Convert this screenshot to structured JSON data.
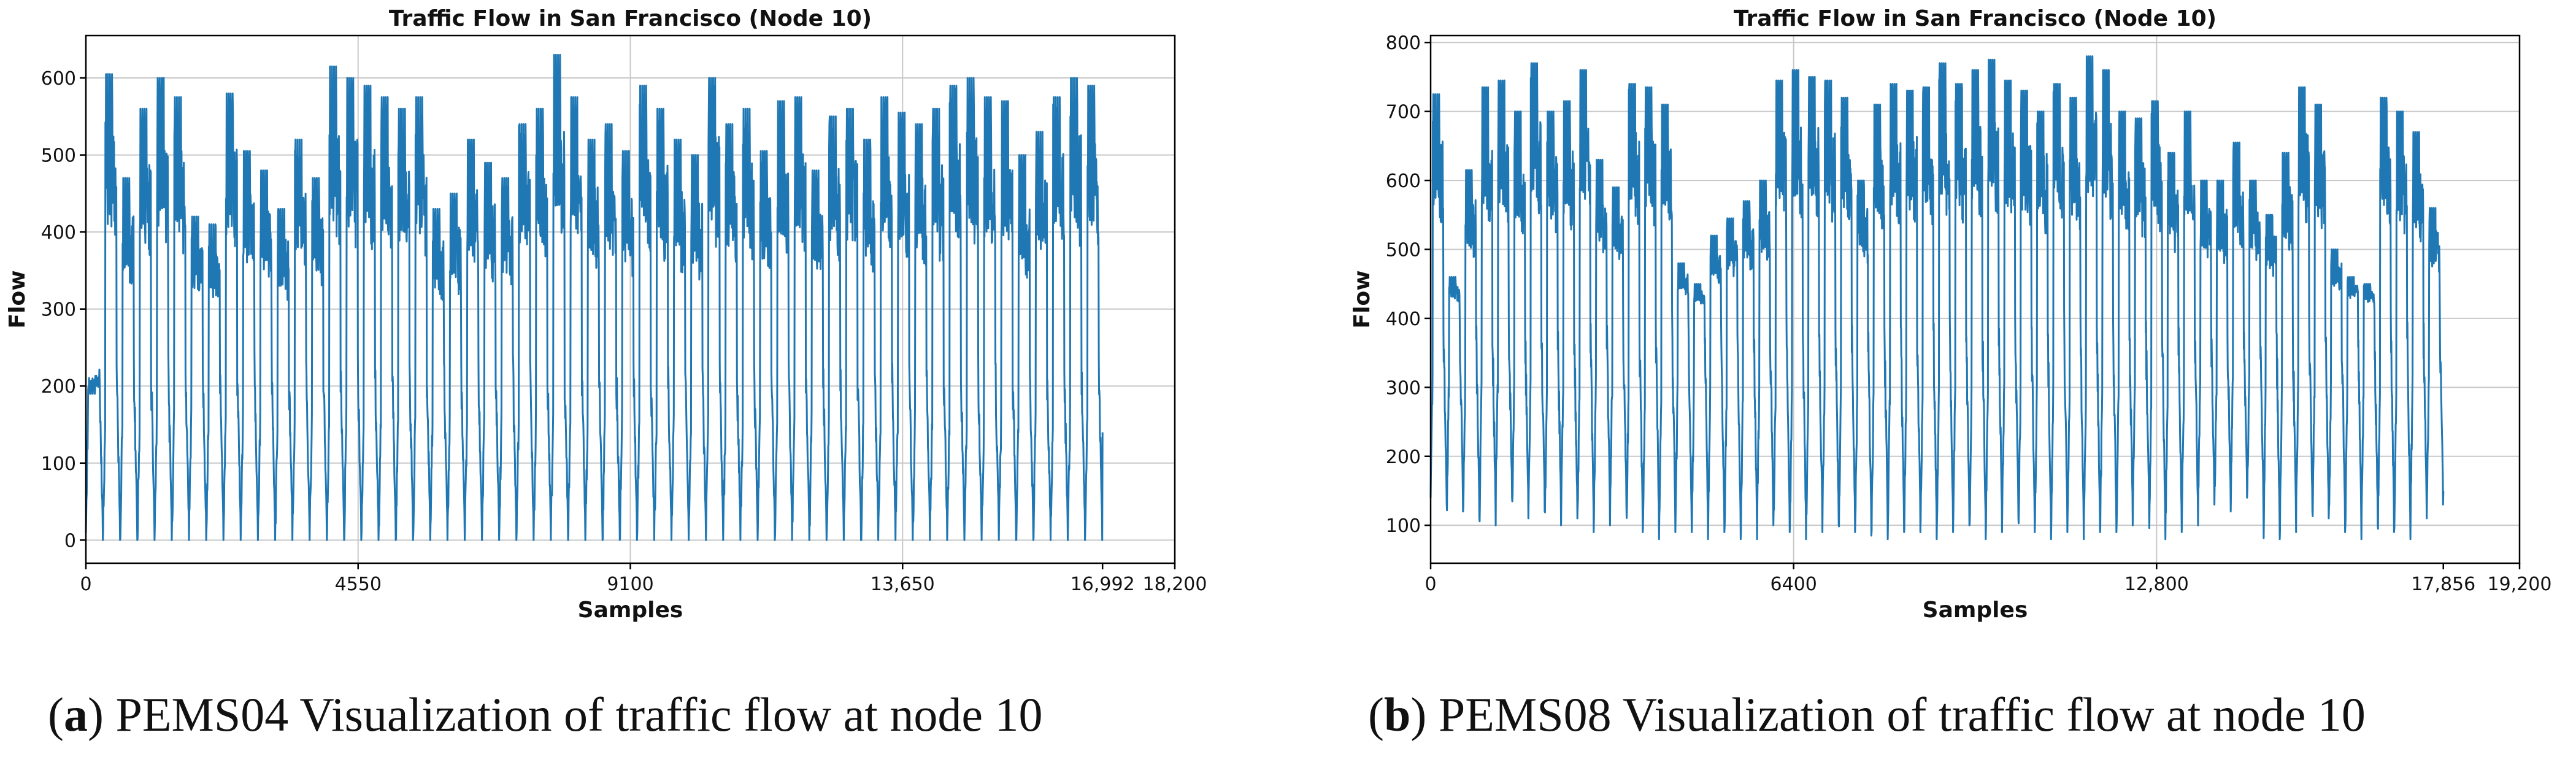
{
  "charts": {
    "a": {
      "caption_letter": "a",
      "caption_text": " PEMS04 Visualization of traffic flow at node 10"
    },
    "b": {
      "caption_letter": "b",
      "caption_text": " PEMS08 Visualization of traffic flow at node 10"
    }
  },
  "colors": {
    "line": "#1f77b4",
    "grid": "#c8c8c8",
    "axis": "#000000",
    "text": "#111111"
  },
  "chart_data": [
    {
      "type": "line",
      "title": "Traffic Flow in San Francisco (Node 10)",
      "xlabel": "Samples",
      "ylabel": "Flow",
      "xlim": [
        0,
        18200
      ],
      "ylim": [
        -30,
        655
      ],
      "xticks": [
        0,
        4550,
        9100,
        13650,
        16992,
        18200
      ],
      "xtick_labels": [
        "0",
        "4550",
        "9100",
        "13,650",
        "16,992",
        "18,200"
      ],
      "yticks": [
        0,
        100,
        200,
        300,
        400,
        500,
        600
      ],
      "xgrid": [
        0,
        4550,
        9100,
        13650,
        18200
      ],
      "grid": true,
      "series": [
        {
          "name": "PEMS04 node 10",
          "x_end": 16992,
          "cycles": 59,
          "daily_peaks": [
            190,
            605,
            470,
            560,
            600,
            575,
            420,
            410,
            580,
            505,
            480,
            430,
            520,
            470,
            615,
            600,
            590,
            575,
            560,
            575,
            430,
            450,
            520,
            490,
            470,
            540,
            560,
            630,
            575,
            520,
            540,
            505,
            590,
            560,
            520,
            500,
            600,
            540,
            560,
            505,
            570,
            575,
            480,
            550,
            560,
            520,
            575,
            555,
            540,
            560,
            590,
            600,
            575,
            570,
            500,
            530,
            575,
            600,
            590
          ],
          "daily_lows": [
            0,
            0,
            0,
            0,
            0,
            0,
            0,
            0,
            0,
            0,
            0,
            0,
            0,
            0,
            0,
            0,
            0,
            0,
            0,
            0,
            0,
            0,
            0,
            0,
            0,
            0,
            0,
            0,
            0,
            0,
            0,
            0,
            0,
            0,
            0,
            0,
            0,
            0,
            0,
            0,
            0,
            0,
            0,
            0,
            0,
            0,
            0,
            0,
            0,
            0,
            0,
            0,
            0,
            0,
            0,
            0,
            0,
            0,
            0
          ],
          "day_floor": 230,
          "end_value": 140
        }
      ]
    },
    {
      "type": "line",
      "title": "Traffic Flow in San Francisco (Node 10)",
      "xlabel": "Samples",
      "ylabel": "Flow",
      "xlim": [
        0,
        19200
      ],
      "ylim": [
        45,
        810
      ],
      "xticks": [
        0,
        6400,
        12800,
        17856,
        19200
      ],
      "xtick_labels": [
        "0",
        "6400",
        "12,800",
        "17,856",
        "19,200"
      ],
      "yticks": [
        100,
        200,
        300,
        400,
        500,
        600,
        700,
        800
      ],
      "xgrid": [
        0,
        6400,
        12800,
        19200
      ],
      "grid": true,
      "series": [
        {
          "name": "PEMS08 node 10",
          "x_end": 17856,
          "cycles": 62,
          "daily_peaks": [
            725,
            460,
            615,
            735,
            745,
            700,
            770,
            700,
            715,
            760,
            630,
            590,
            740,
            735,
            710,
            480,
            450,
            520,
            545,
            570,
            600,
            745,
            760,
            750,
            745,
            720,
            600,
            710,
            740,
            730,
            735,
            770,
            740,
            760,
            775,
            745,
            730,
            700,
            740,
            720,
            780,
            760,
            700,
            690,
            715,
            640,
            700,
            600,
            600,
            655,
            600,
            550,
            640,
            735,
            710,
            500,
            460,
            450,
            720,
            700,
            670,
            560
          ],
          "daily_lows": [
            130,
            120,
            110,
            100,
            140,
            110,
            120,
            100,
            110,
            90,
            100,
            130,
            90,
            80,
            90,
            90,
            80,
            90,
            80,
            80,
            100,
            90,
            80,
            90,
            100,
            90,
            85,
            80,
            90,
            90,
            80,
            90,
            100,
            80,
            90,
            110,
            90,
            80,
            90,
            80,
            90,
            90,
            100,
            120,
            80,
            90,
            100,
            130,
            120,
            140,
            130,
            80,
            90,
            120,
            110,
            90,
            80,
            100,
            90,
            80,
            110,
            130
          ],
          "day_floor": 400,
          "end_value": 150
        }
      ]
    }
  ]
}
